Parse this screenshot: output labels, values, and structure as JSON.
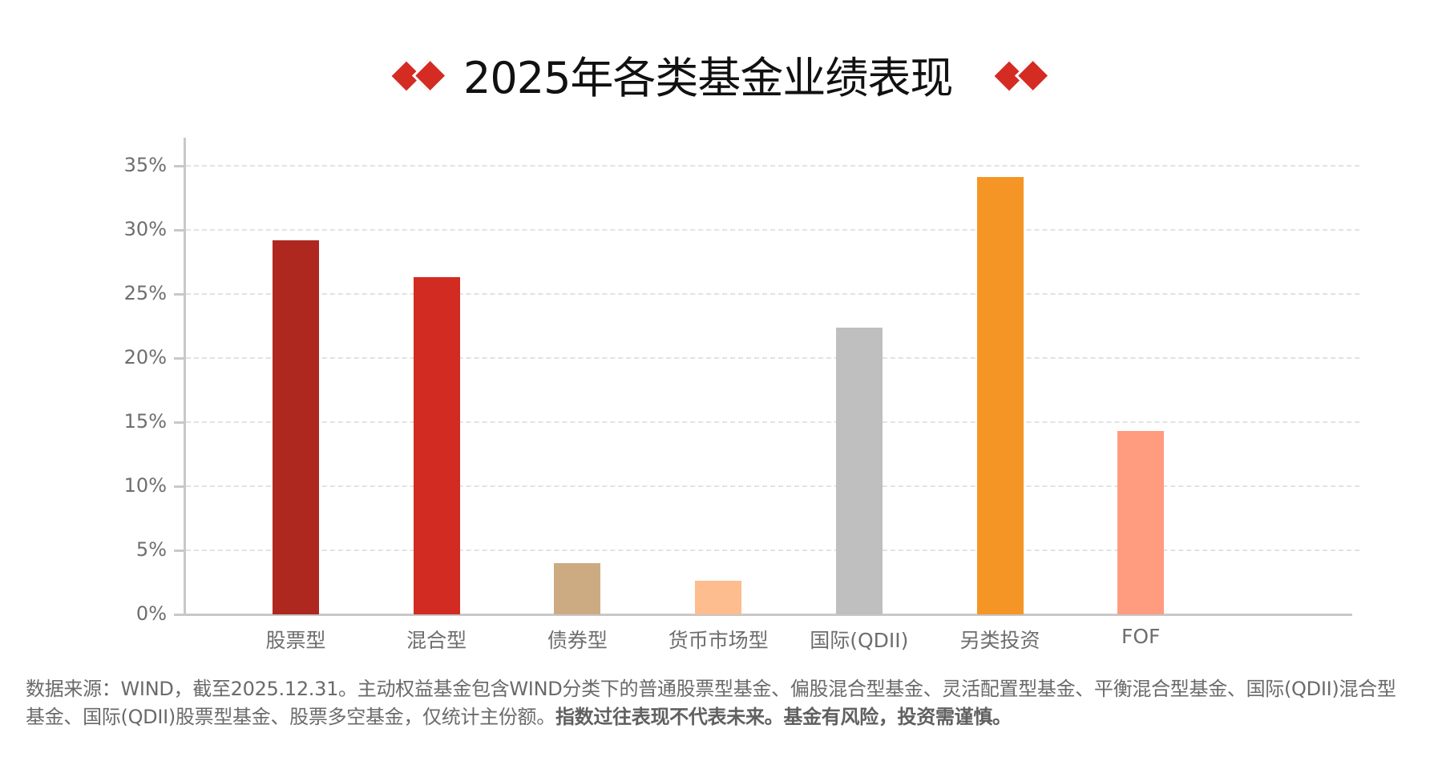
{
  "header": {
    "title": "2025年各类基金业绩表现",
    "ornament_color": "#D42B22"
  },
  "chart_data": {
    "type": "bar",
    "title": "2025年各类基金业绩表现",
    "xlabel": "",
    "ylabel": "",
    "categories": [
      "股票型",
      "混合型",
      "债券型",
      "货币市场型",
      "国际(QDII)",
      "另类投资",
      "FOF"
    ],
    "values": [
      29.2,
      26.3,
      4.0,
      2.6,
      22.4,
      34.1,
      14.3
    ],
    "unit": "%",
    "colors": [
      "#AE2820",
      "#D22B22",
      "#CDAB82",
      "#FDBD8E",
      "#BFBFBF",
      "#F49525",
      "#FF9C80"
    ],
    "ylim": [
      0,
      37
    ],
    "yticks": [
      "0%",
      "5%",
      "10%",
      "15%",
      "20%",
      "25%",
      "30%",
      "35%"
    ],
    "grid": true,
    "legend": "none"
  },
  "footnote": {
    "normal": "数据来源：WIND，截至2025.12.31。主动权益基金包含WIND分类下的普通股票型基金、偏股混合型基金、灵活配置型基金、平衡混合型基金、国际(QDII)混合型基金、国际(QDII)股票型基金、股票多空基金，仅统计主份额。",
    "bold": "指数过往表现不代表未来。基金有风险，投资需谨慎。"
  }
}
